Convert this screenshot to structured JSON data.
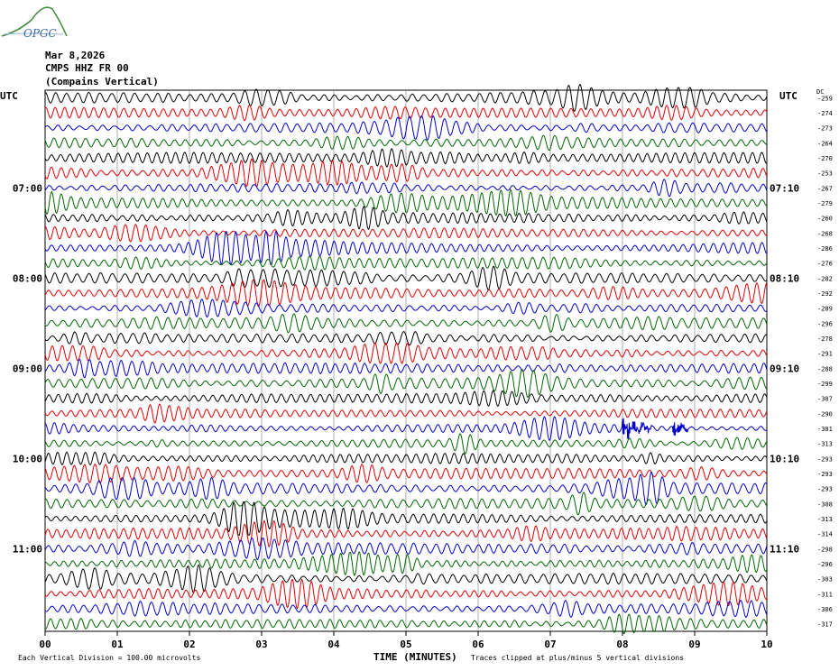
{
  "logo_text": "OPGC",
  "header": {
    "date": "Mar 8,2026",
    "station": "CMPS HHZ FR 00",
    "name": "(Compains Vertical)"
  },
  "left_axis_label": "UTC",
  "right_axis_label": "UTC",
  "dc_label": "DC",
  "footer": {
    "scale": "Each Vertical Division =  100.00 microvolts",
    "clip": "Traces clipped at plus/minus 5 vertical divisions",
    "xlabel": "TIME (MINUTES)"
  },
  "chart_data": {
    "type": "line",
    "title": "",
    "xlabel": "TIME (MINUTES)",
    "xlim": [
      0,
      10
    ],
    "x_ticks": [
      "00",
      "01",
      "02",
      "03",
      "04",
      "05",
      "06",
      "07",
      "08",
      "09",
      "10"
    ],
    "row_minutes": 10,
    "rows": 36,
    "left_time_labels": [
      {
        "row": 6,
        "label": "07:00"
      },
      {
        "row": 12,
        "label": "08:00"
      },
      {
        "row": 18,
        "label": "09:00"
      },
      {
        "row": 24,
        "label": "10:00"
      },
      {
        "row": 30,
        "label": "11:00"
      }
    ],
    "right_time_labels": [
      {
        "row": 6,
        "label": "07:10"
      },
      {
        "row": 12,
        "label": "08:10"
      },
      {
        "row": 18,
        "label": "09:10"
      },
      {
        "row": 24,
        "label": "10:10"
      },
      {
        "row": 30,
        "label": "11:10"
      }
    ],
    "trace_colors": [
      "#000000",
      "#e00000",
      "#0000cc",
      "#006600"
    ],
    "dc_offsets": [
      -259,
      -274,
      -273,
      -264,
      -270,
      -253,
      -267,
      -279,
      -260,
      -268,
      -286,
      -276,
      -282,
      -292,
      -289,
      -296,
      -278,
      -291,
      -288,
      -299,
      -307,
      -290,
      -301,
      -313,
      -293,
      -293,
      -293,
      -308,
      -313,
      -314,
      -298,
      -296,
      -303,
      -311,
      -306,
      -317
    ],
    "events": [
      {
        "row": 22,
        "start_min": 8.0,
        "end_min": 8.4,
        "amplitude": "large"
      },
      {
        "row": 22,
        "start_min": 8.7,
        "end_min": 8.9,
        "amplitude": "medium"
      }
    ]
  }
}
